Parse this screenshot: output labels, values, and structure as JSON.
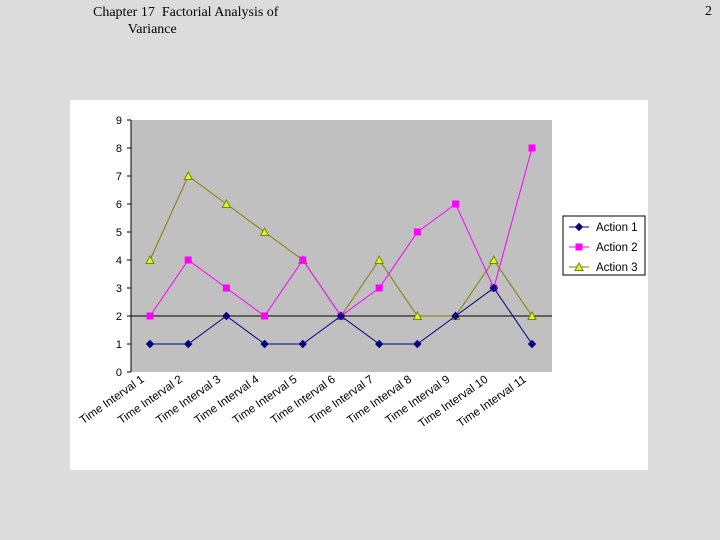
{
  "header": {
    "title_line1": "Chapter 17  Factorial Analysis of",
    "title_line2": "Variance",
    "page_number": "2"
  },
  "chart_data": {
    "type": "line",
    "categories": [
      "Time Interval 1",
      "Time Interval 2",
      "Time Interval 3",
      "Time Interval 4",
      "Time Interval 5",
      "Time Interval 6",
      "Time Interval 7",
      "Time Interval 8",
      "Time Interval 9",
      "Time Interval 10",
      "Time Interval 11"
    ],
    "ylim": [
      0,
      9
    ],
    "yticks": [
      0,
      1,
      2,
      3,
      4,
      5,
      6,
      7,
      8,
      9
    ],
    "reference_line": 2,
    "grid": false,
    "legend_position": "right",
    "series": [
      {
        "name": "Action 1",
        "color": "#000080",
        "marker": "diamond",
        "values": [
          1,
          1,
          2,
          1,
          1,
          2,
          1,
          1,
          2,
          3,
          1
        ]
      },
      {
        "name": "Action 2",
        "color": "#ff00ff",
        "marker": "square",
        "values": [
          2,
          4,
          3,
          2,
          4,
          2,
          3,
          5,
          6,
          3,
          8
        ]
      },
      {
        "name": "Action 3",
        "color": "#808000",
        "marker": "triangle",
        "values": [
          4,
          7,
          6,
          5,
          4,
          2,
          4,
          2,
          2,
          4,
          2
        ]
      }
    ]
  }
}
